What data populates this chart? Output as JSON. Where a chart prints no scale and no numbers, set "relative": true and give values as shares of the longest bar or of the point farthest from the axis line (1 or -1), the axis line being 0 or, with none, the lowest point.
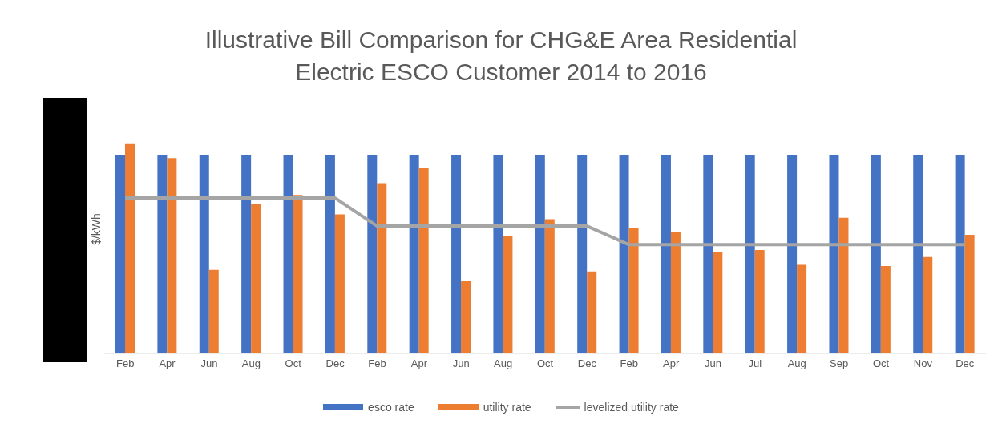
{
  "chart_data": {
    "type": "bar",
    "title": "Illustrative Bill Comparison for CHG&E Area Residential\nElectric ESCO Customer 2014 to 2016",
    "ylabel": "$/kWh",
    "relative": true,
    "legend": "bottom",
    "grid": false,
    "categories": [
      "Feb",
      "Apr",
      "Jun",
      "Aug",
      "Oct",
      "Dec",
      "Feb",
      "Apr",
      "Jun",
      "Aug",
      "Oct",
      "Dec",
      "Feb",
      "Apr",
      "Jun",
      "Jul",
      "Aug",
      "Sep",
      "Oct",
      "Nov",
      "Dec"
    ],
    "series": [
      {
        "name": "esco rate",
        "color": "#4472c4",
        "values": [
          0.949,
          0.949,
          0.949,
          0.949,
          0.949,
          0.949,
          0.949,
          0.949,
          0.949,
          0.949,
          0.949,
          0.949,
          0.949,
          0.949,
          0.949,
          0.949,
          0.949,
          0.949,
          0.949,
          0.949,
          0.949
        ]
      },
      {
        "name": "utility rate",
        "color": "#ed7d31",
        "values": [
          1.0,
          0.933,
          0.399,
          0.714,
          0.757,
          0.664,
          0.813,
          0.888,
          0.347,
          0.561,
          0.641,
          0.391,
          0.597,
          0.58,
          0.484,
          0.494,
          0.423,
          0.648,
          0.417,
          0.46,
          0.566
        ]
      },
      {
        "name": "levelized utility rate",
        "type": "line",
        "color": "#a5a5a5",
        "values": [
          0.742,
          0.742,
          0.742,
          0.742,
          0.742,
          0.742,
          0.608,
          0.608,
          0.608,
          0.608,
          0.608,
          0.608,
          0.519,
          0.519,
          0.519,
          0.519,
          0.519,
          0.519,
          0.519,
          0.519,
          0.519
        ]
      }
    ]
  }
}
